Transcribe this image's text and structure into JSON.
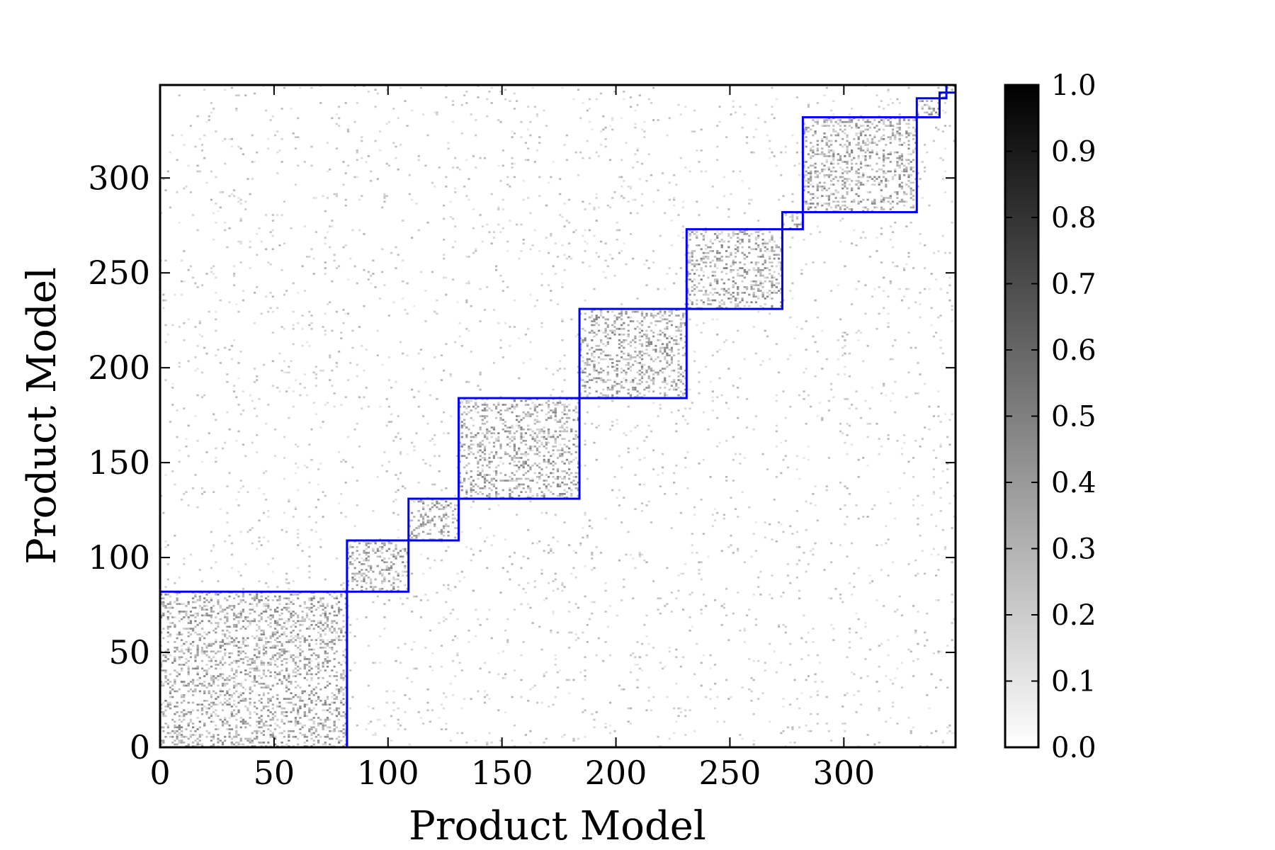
{
  "chart_data": {
    "type": "heatmap",
    "title": "",
    "xlabel": "Product Model",
    "ylabel": "Product Model",
    "xlim": [
      0,
      349
    ],
    "ylim": [
      0,
      349
    ],
    "x_ticks": [
      0,
      50,
      100,
      150,
      200,
      250,
      300
    ],
    "y_ticks": [
      0,
      50,
      100,
      150,
      200,
      250,
      300
    ],
    "x_tick_labels": [
      "0",
      "50",
      "100",
      "150",
      "200",
      "250",
      "300"
    ],
    "y_tick_labels": [
      "0",
      "50",
      "100",
      "150",
      "200",
      "250",
      "300"
    ],
    "colormap": "gray_r",
    "colorbar": {
      "range": [
        0.0,
        1.0
      ],
      "ticks": [
        0.0,
        0.1,
        0.2,
        0.3,
        0.4,
        0.5,
        0.6,
        0.7,
        0.8,
        0.9,
        1.0
      ],
      "tick_labels": [
        "0.0",
        "0.1",
        "0.2",
        "0.3",
        "0.4",
        "0.5",
        "0.6",
        "0.7",
        "0.8",
        "0.9",
        "1.0"
      ]
    },
    "cluster_boundaries": [
      0,
      82,
      109,
      131,
      184,
      231,
      273,
      282,
      332,
      342,
      345,
      349
    ],
    "cluster_boundary_color": "#0000ff",
    "grid": false,
    "legend": "none"
  }
}
